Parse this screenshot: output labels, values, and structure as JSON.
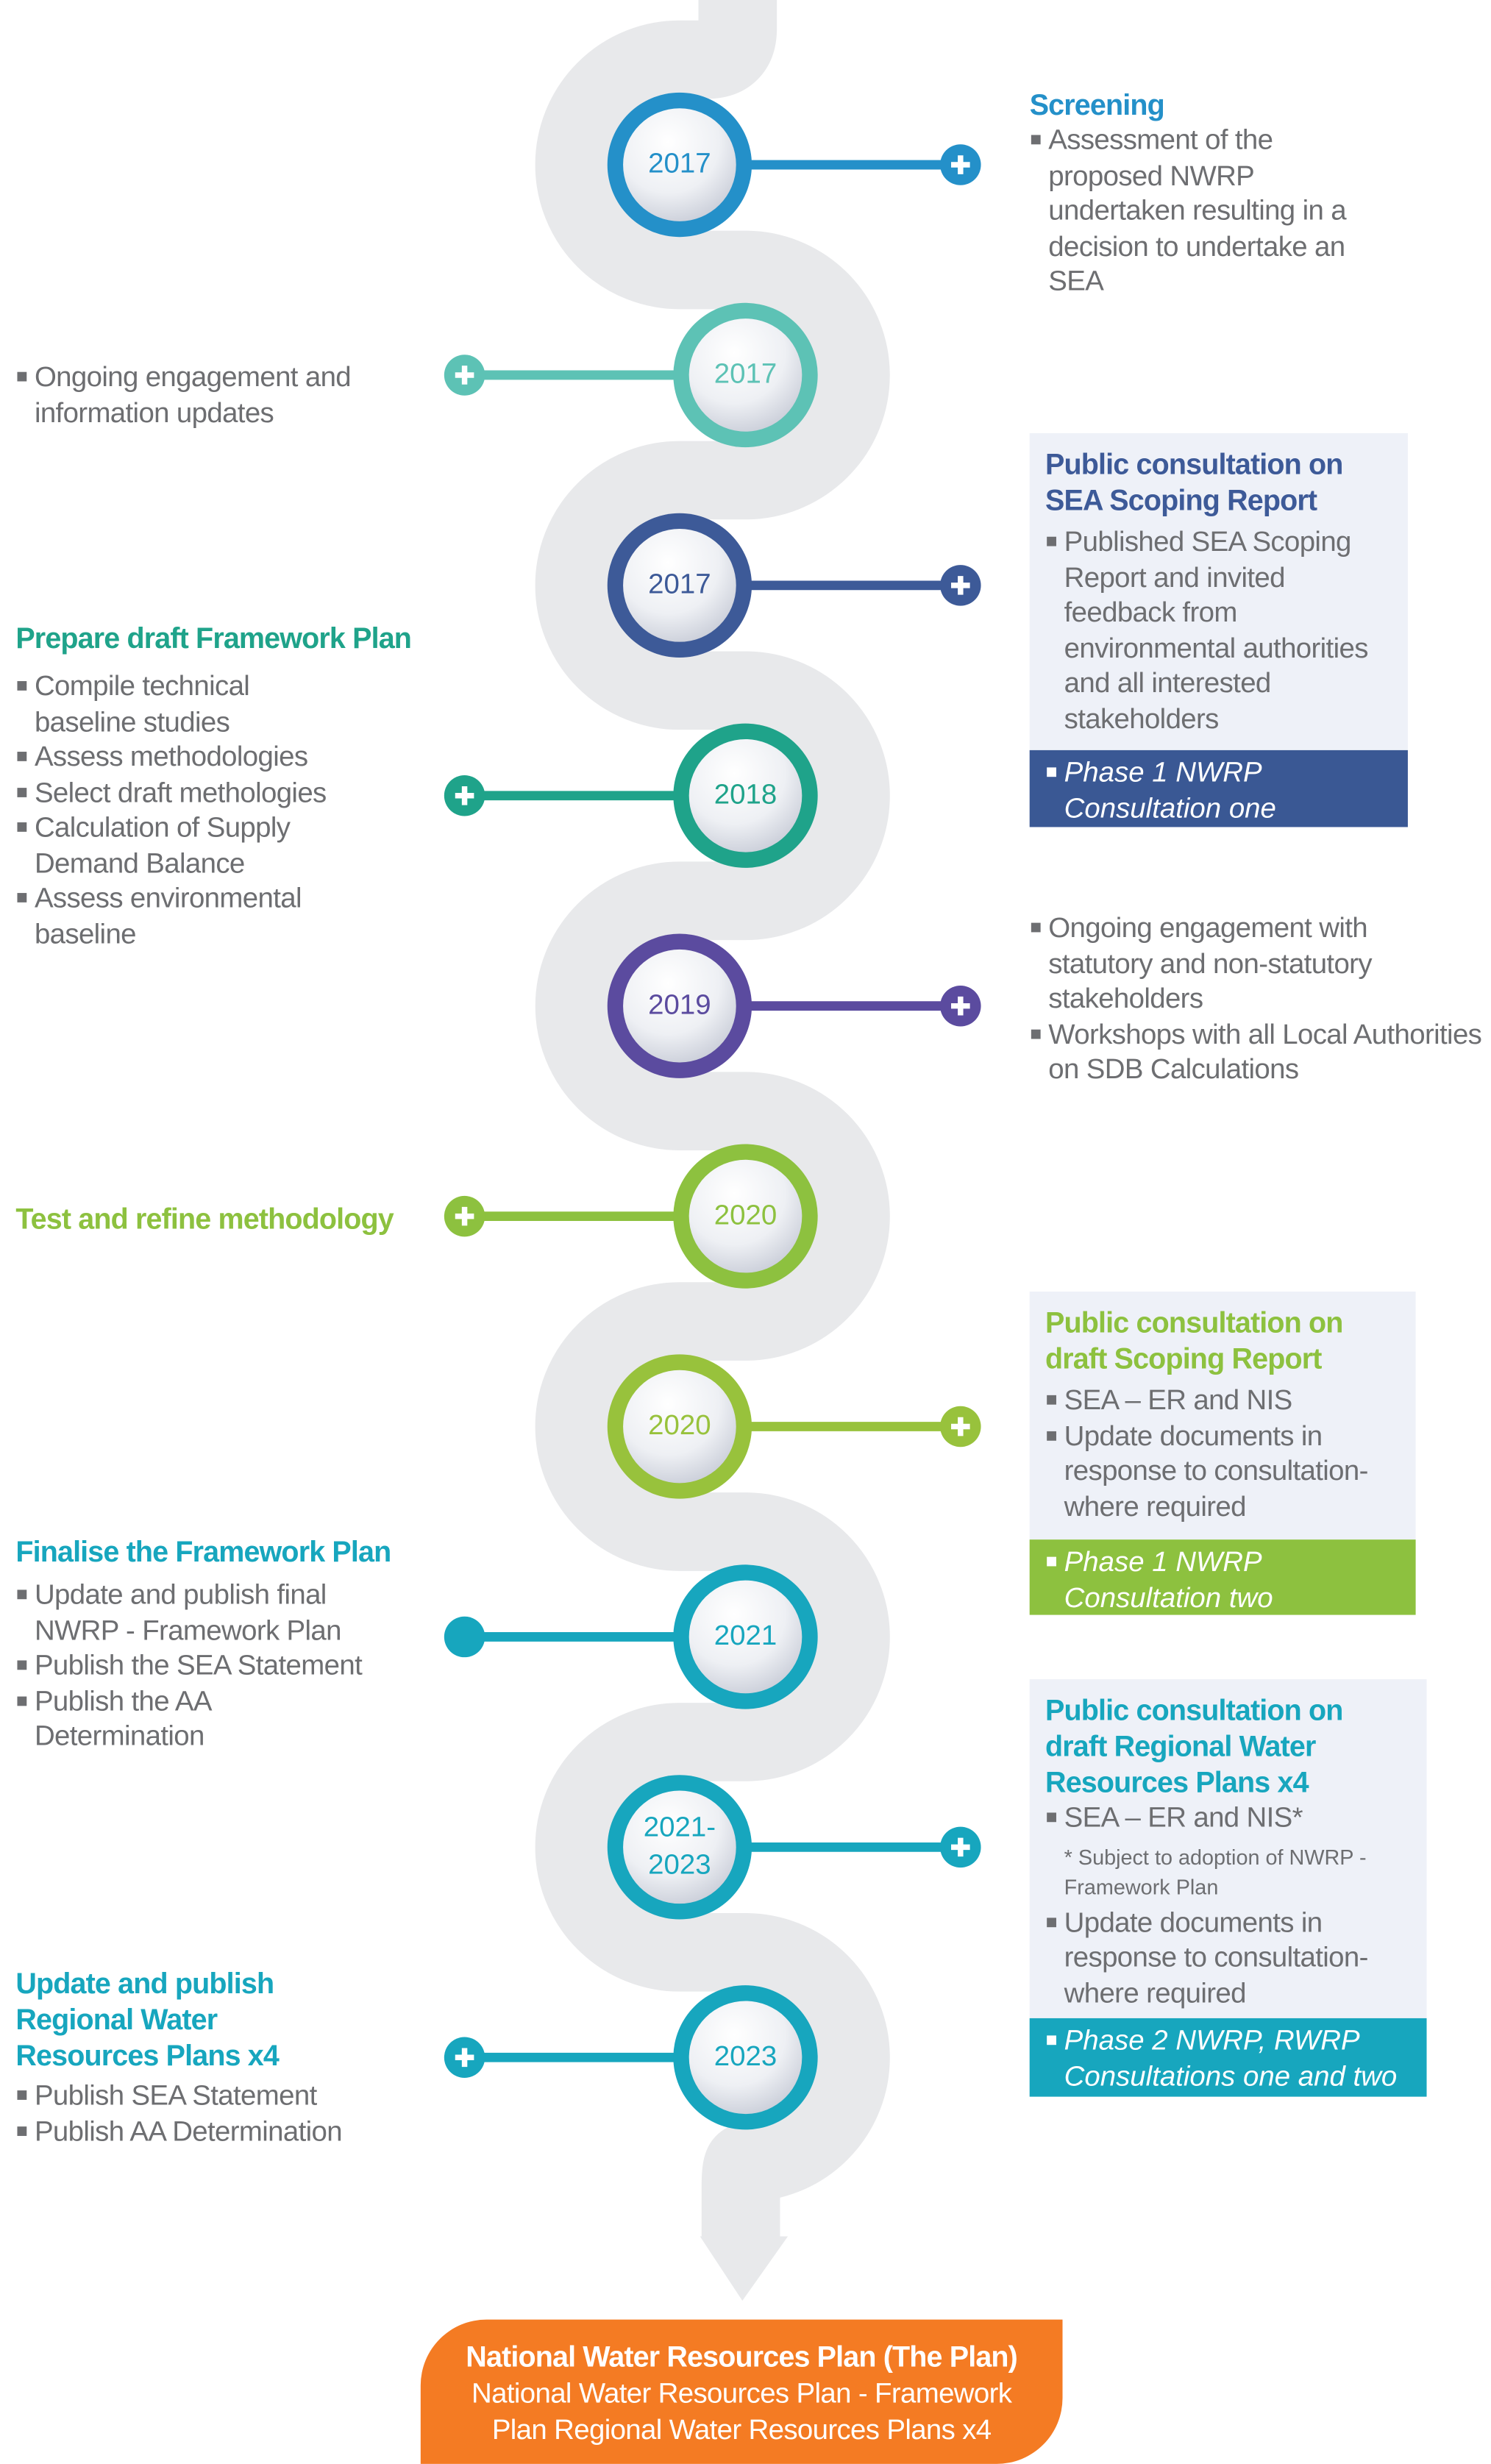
{
  "colors": {
    "path": "#e8e9eb",
    "text": "#6d6e71",
    "box_bg": "#eef1f8",
    "final": "#f47b23"
  },
  "timeline": [
    {
      "year": "2017",
      "side": "left",
      "color": "#2490c9",
      "end": "plus-icon"
    },
    {
      "year": "2017",
      "side": "right",
      "color": "#5dc2b5",
      "end": "plus-icon"
    },
    {
      "year": "2017",
      "side": "left",
      "color": "#3d5a98",
      "end": "plus-icon"
    },
    {
      "year": "2018",
      "side": "right",
      "color": "#1fa38a",
      "end": "plus-icon"
    },
    {
      "year": "2019",
      "side": "left",
      "color": "#5b4b9f",
      "end": "plus-icon"
    },
    {
      "year": "2020",
      "side": "right",
      "color": "#8dc13f",
      "end": "plus-icon"
    },
    {
      "year": "2020",
      "side": "left",
      "color": "#98c23c",
      "end": "plus-icon"
    },
    {
      "year": "2021",
      "side": "right",
      "color": "#17a6be",
      "end": "dot"
    },
    {
      "year": "2021-\n2023",
      "side": "left",
      "color": "#17a6be",
      "end": "plus-icon"
    },
    {
      "year": "2023",
      "side": "right",
      "color": "#17a6be",
      "end": "plus-icon"
    }
  ],
  "right": {
    "screening": {
      "title": "Screening",
      "bullets": [
        "Assessment of the proposed NWRP undertaken resulting in a decision to undertake an SEA"
      ]
    },
    "scoping": {
      "title": "Public consultation on SEA Scoping Report",
      "bullets": [
        "Published SEA Scoping Report and invited feedback from environmental authorities and all interested stakeholders"
      ],
      "footer": "Phase 1 NWRP Consultation one"
    },
    "engagement": {
      "bullets": [
        "Ongoing engagement with statutory and non-statutory stakeholders",
        "Workshops with all Local Authorities on SDB Calculations"
      ]
    },
    "draft_scoping": {
      "title": "Public consultation on draft Scoping Report",
      "bullets": [
        "SEA – ER and NIS",
        "Update documents in response to consultation- where required"
      ],
      "footer": "Phase 1 NWRP Consultation two"
    },
    "regional": {
      "title": "Public consultation on draft Regional Water Resources Plans x4",
      "bullet1": "SEA – ER and NIS*",
      "note": "* Subject to adoption of NWRP - Framework Plan",
      "bullet2": "Update documents in response to consultation- where required",
      "footer": "Phase 2 NWRP,  RWRP Consultations one and two"
    }
  },
  "left": {
    "ongoing": {
      "bullets": [
        "Ongoing engagement and information updates"
      ]
    },
    "prepare": {
      "title": "Prepare draft Framework Plan",
      "bullets": [
        "Compile technical baseline studies",
        "Assess methodologies",
        "Select draft methologies",
        "Calculation of Supply Demand Balance",
        "Assess environmental baseline"
      ]
    },
    "test": {
      "title": "Test and refine methodology"
    },
    "finalise": {
      "title": "Finalise the Framework Plan",
      "bullets": [
        "Update and publish final NWRP - Framework Plan",
        "Publish the SEA Statement",
        "Publish the AA Determination"
      ]
    },
    "update": {
      "title": "Update and publish Regional Water Resources Plans x4",
      "bullets": [
        "Publish SEA Statement",
        "Publish AA Determination"
      ]
    }
  },
  "final": {
    "title": "National Water Resources Plan (The Plan)",
    "line1": "National Water Resources Plan - Framework",
    "line2": "Plan Regional Water Resources Plans x4"
  }
}
